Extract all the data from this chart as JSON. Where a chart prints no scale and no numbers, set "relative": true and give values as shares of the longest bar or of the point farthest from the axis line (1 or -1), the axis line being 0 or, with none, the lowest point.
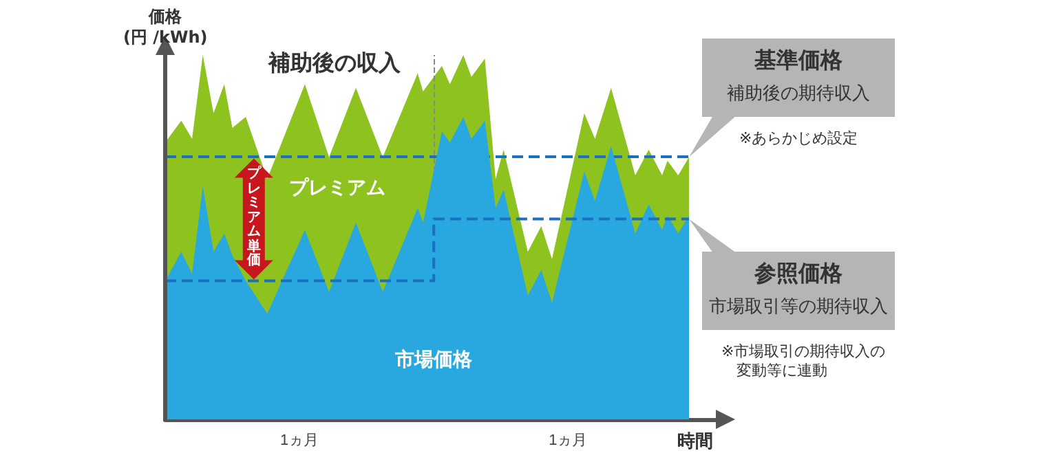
{
  "chart_data": {
    "type": "area",
    "relative": true,
    "xlabel": "時間",
    "ylabel": "価格\n(円 /kWh)",
    "x": [
      0,
      0.06,
      0.1,
      0.14,
      0.18,
      0.22,
      0.25,
      0.3,
      0.38,
      0.52,
      0.61,
      0.71,
      0.81,
      0.94,
      0.96,
      1.03,
      1.06,
      1.11,
      1.14,
      1.19,
      1.23,
      1.26,
      1.35,
      1.4,
      1.44,
      1.56,
      1.6,
      1.66,
      1.75,
      1.8,
      1.85,
      1.87,
      1.91,
      1.95
    ],
    "xlim": [
      0,
      2.05
    ],
    "xticks": [
      {
        "value": 0.5,
        "label": "1ヵ月"
      },
      {
        "value": 1.5,
        "label": "1ヵ月"
      }
    ],
    "series": [
      {
        "name": "補助後の収入",
        "color": "#8dc21f",
        "values": [
          0.76,
          0.82,
          0.77,
          1.0,
          0.84,
          0.92,
          0.8,
          0.83,
          0.66,
          0.92,
          0.72,
          0.91,
          0.72,
          0.95,
          0.9,
          0.97,
          0.92,
          1.0,
          0.94,
          0.99,
          0.66,
          0.74,
          0.46,
          0.53,
          0.44,
          0.84,
          0.77,
          0.91,
          0.67,
          0.74,
          0.67,
          0.71,
          0.67,
          0.72
        ]
      },
      {
        "name": "市場価格",
        "color": "#29a8e0",
        "values": [
          0.38,
          0.46,
          0.4,
          0.64,
          0.46,
          0.51,
          0.45,
          0.38,
          0.29,
          0.52,
          0.35,
          0.54,
          0.35,
          0.58,
          0.54,
          0.79,
          0.76,
          0.83,
          0.77,
          0.82,
          0.58,
          0.63,
          0.34,
          0.41,
          0.32,
          0.68,
          0.6,
          0.75,
          0.51,
          0.59,
          0.52,
          0.56,
          0.51,
          0.56
        ]
      },
      {
        "type": "step",
        "color": "#1a6fc0",
        "line_style": "dashed",
        "x": [
          0,
          1,
          1.95
        ],
        "values": [
          0.38,
          0.55,
          0.55
        ]
      }
    ],
    "ref_lines": [
      {
        "axis": "y",
        "value": 0.72,
        "color": "#1a6fc0",
        "line_style": "dashed"
      },
      {
        "axis": "x",
        "value": 1,
        "color": "#888888",
        "line_style": "dashed"
      }
    ],
    "annotations": [
      "プレミアム",
      "プレミアム単価",
      "基準価格",
      "補助後の期待収入",
      "※あらかじめ設定",
      "参照価格",
      "市場取引等の期待収入",
      "※市場取引の期待収入の変動等に連動"
    ]
  }
}
